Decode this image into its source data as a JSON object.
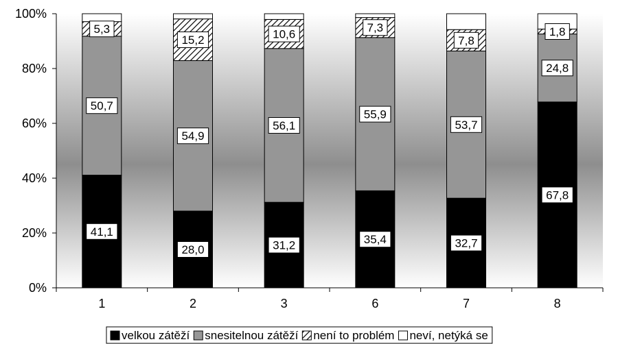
{
  "chart_data": {
    "type": "bar",
    "stacked": true,
    "percent": true,
    "categories": [
      "1",
      "2",
      "3",
      "6",
      "7",
      "8"
    ],
    "series": [
      {
        "name": "velkou zátěží",
        "values": [
          41.1,
          28.0,
          31.2,
          35.4,
          32.7,
          67.8
        ],
        "labels": [
          "41,1",
          "28,0",
          "31,2",
          "35,4",
          "32,7",
          "67,8"
        ],
        "color": "#000000",
        "pattern": "solid"
      },
      {
        "name": "snesitelnou zátěží",
        "values": [
          50.7,
          54.9,
          56.1,
          55.9,
          53.7,
          24.8
        ],
        "labels": [
          "50,7",
          "54,9",
          "56,1",
          "55,9",
          "53,7",
          "24,8"
        ],
        "color": "#969696",
        "pattern": "solid"
      },
      {
        "name": "není to problém",
        "values": [
          5.3,
          15.2,
          10.6,
          7.3,
          7.8,
          1.8
        ],
        "labels": [
          "5,3",
          "15,2",
          "10,6",
          "7,3",
          "7,8",
          "1,8"
        ],
        "color": "#ffffff",
        "pattern": "diagonal-hatch"
      },
      {
        "name": "neví, netýká se",
        "values": [
          2.9,
          1.9,
          2.1,
          1.4,
          5.8,
          5.6
        ],
        "labels": [
          "",
          "",
          "",
          "",
          "",
          ""
        ],
        "color": "#ffffff",
        "pattern": "solid"
      }
    ],
    "yticks": [
      "0%",
      "20%",
      "40%",
      "60%",
      "80%",
      "100%"
    ],
    "ylim": [
      0,
      100
    ],
    "grid": false,
    "legend_position": "bottom",
    "plot_background": "vertical gradient white-grey-white"
  }
}
